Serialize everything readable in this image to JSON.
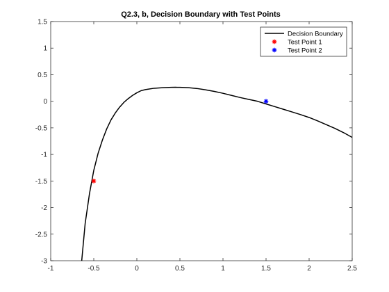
{
  "chart_data": {
    "type": "line",
    "title": "Q2.3, b, Decision Boundary with Test Points",
    "xlabel": "",
    "ylabel": "",
    "xlim": [
      -1,
      2.5
    ],
    "ylim": [
      -3,
      1.5
    ],
    "xticks": [
      -1,
      -0.5,
      0,
      0.5,
      1,
      1.5,
      2,
      2.5
    ],
    "xtick_labels": [
      "-1",
      "-0.5",
      "0",
      "0.5",
      "1",
      "1.5",
      "2",
      "2.5"
    ],
    "yticks": [
      -3,
      -2.5,
      -2,
      -1.5,
      -1,
      -0.5,
      0,
      0.5,
      1,
      1.5
    ],
    "ytick_labels": [
      "-3",
      "-2.5",
      "-2",
      "-1.5",
      "-1",
      "-0.5",
      "0",
      "0.5",
      "1",
      "1.5"
    ],
    "grid": false,
    "legend_position": "top-right",
    "series": [
      {
        "name": "Decision Boundary",
        "kind": "line",
        "color": "#000000",
        "x": [
          -0.64,
          -0.6,
          -0.55,
          -0.5,
          -0.45,
          -0.4,
          -0.35,
          -0.3,
          -0.25,
          -0.2,
          -0.15,
          -0.1,
          -0.05,
          0.0,
          0.05,
          0.1,
          0.2,
          0.3,
          0.4,
          0.45,
          0.5,
          0.6,
          0.7,
          0.8,
          0.9,
          1.0,
          1.1,
          1.2,
          1.3,
          1.4,
          1.5,
          1.6,
          1.7,
          1.8,
          1.9,
          2.0,
          2.1,
          2.2,
          2.3,
          2.4,
          2.5
        ],
        "y": [
          -3.0,
          -2.3,
          -1.74,
          -1.3,
          -0.98,
          -0.73,
          -0.52,
          -0.35,
          -0.22,
          -0.11,
          -0.02,
          0.05,
          0.11,
          0.16,
          0.2,
          0.22,
          0.245,
          0.255,
          0.262,
          0.263,
          0.262,
          0.255,
          0.24,
          0.215,
          0.185,
          0.15,
          0.11,
          0.07,
          0.035,
          0.0,
          -0.05,
          -0.1,
          -0.15,
          -0.2,
          -0.25,
          -0.305,
          -0.37,
          -0.44,
          -0.51,
          -0.59,
          -0.68
        ]
      },
      {
        "name": "Test Point 1",
        "kind": "marker",
        "marker": "asterisk",
        "color": "#ff0000",
        "x": [
          -0.5
        ],
        "y": [
          -1.5
        ]
      },
      {
        "name": "Test Point 2",
        "kind": "marker",
        "marker": "asterisk",
        "color": "#0000ff",
        "x": [
          1.5
        ],
        "y": [
          0
        ]
      }
    ]
  }
}
